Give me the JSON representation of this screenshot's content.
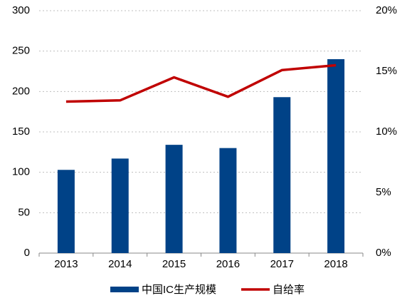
{
  "chart_data": {
    "type": "bar",
    "categories": [
      "2013",
      "2014",
      "2015",
      "2016",
      "2017",
      "2018"
    ],
    "series": [
      {
        "name": "中国IC生产规模",
        "type": "bar",
        "color": "#004287",
        "values": [
          103,
          117,
          134,
          130,
          193,
          240
        ]
      },
      {
        "name": "自给率",
        "type": "line",
        "axis": "y2",
        "color": "#c00000",
        "values": [
          12.5,
          12.6,
          14.5,
          12.9,
          15.1,
          15.5
        ]
      }
    ],
    "ylim": [
      0,
      300
    ],
    "yticks": [
      0,
      50,
      100,
      150,
      200,
      250,
      300
    ],
    "y2lim": [
      0,
      20
    ],
    "y2ticks": [
      {
        "value": 0,
        "label": "0%"
      },
      {
        "value": 5,
        "label": "5%"
      },
      {
        "value": 10,
        "label": "10%"
      },
      {
        "value": 15,
        "label": "15%"
      },
      {
        "value": 20,
        "label": "20%"
      }
    ],
    "grid": true,
    "legend": "bottom"
  }
}
